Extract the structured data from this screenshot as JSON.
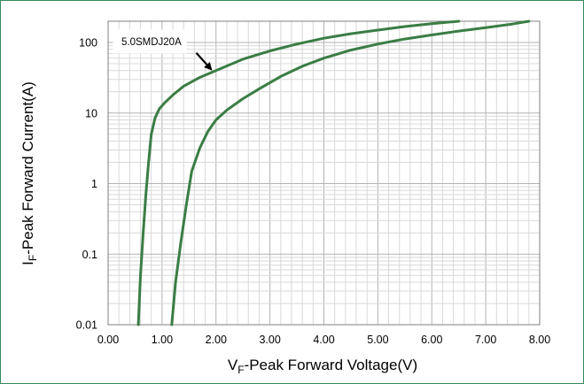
{
  "chart_data": {
    "type": "line",
    "xlabel": {
      "prefix": "V",
      "sub": "F",
      "text": "-Peak Forward Voltage(V)"
    },
    "ylabel": {
      "prefix": "I",
      "sub": "F",
      "text": "-Peak Forward Current(A)"
    },
    "xlim": [
      0,
      8
    ],
    "ylim": [
      0.01,
      200
    ],
    "yscale": "log",
    "grid": true,
    "x_ticks": [
      "0.00",
      "1.00",
      "2.00",
      "3.00",
      "4.00",
      "5.00",
      "6.00",
      "7.00",
      "8.00"
    ],
    "y_ticks": [
      {
        "value": 0.01,
        "label": "0.01"
      },
      {
        "value": 0.1,
        "label": "0.1"
      },
      {
        "value": 1,
        "label": "1"
      },
      {
        "value": 10,
        "label": "10"
      },
      {
        "value": 100,
        "label": "100"
      }
    ],
    "line_color": "#3a7d44",
    "series": [
      {
        "x": [
          0.56,
          0.6,
          0.65,
          0.7,
          0.75,
          0.8,
          0.87,
          0.95,
          1.05,
          1.2,
          1.4,
          1.7,
          2.0,
          2.5,
          3.0,
          3.5,
          4.0,
          4.5,
          5.0,
          5.5,
          6.0,
          6.5
        ],
        "y": [
          0.01,
          0.05,
          0.2,
          0.7,
          2.0,
          5.0,
          8.5,
          11.5,
          14.0,
          18.0,
          24.0,
          32.0,
          40.0,
          58.0,
          76.0,
          95.0,
          115.0,
          133.0,
          150.0,
          168.0,
          185.0,
          200.0
        ]
      },
      {
        "x": [
          1.18,
          1.25,
          1.35,
          1.45,
          1.55,
          1.7,
          1.85,
          2.0,
          2.2,
          2.5,
          2.8,
          3.2,
          3.6,
          4.0,
          4.5,
          5.0,
          5.5,
          6.0,
          6.5,
          7.0,
          7.5,
          7.8
        ],
        "y": [
          0.01,
          0.04,
          0.15,
          0.5,
          1.5,
          3.2,
          5.5,
          8.0,
          11.0,
          16.0,
          22.0,
          33.0,
          46.0,
          60.0,
          78.0,
          95.0,
          112.0,
          128.0,
          145.0,
          162.0,
          183.0,
          200.0
        ]
      }
    ],
    "annotation": {
      "text": "5.0SMDJ20A",
      "arrow_to": {
        "x": 1.93,
        "y": 40
      }
    }
  }
}
